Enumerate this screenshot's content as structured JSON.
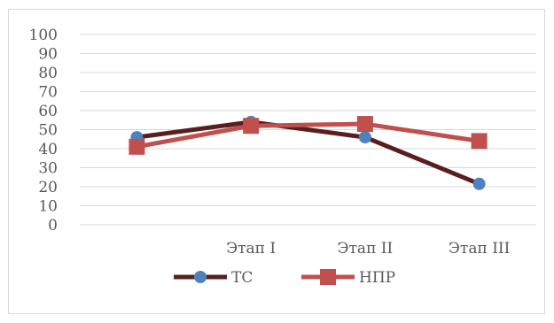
{
  "chart_data": {
    "type": "line",
    "categories": [
      "",
      "Этап I",
      "Этап II",
      "Этап III"
    ],
    "ylim": [
      0,
      100
    ],
    "yticks": [
      0,
      10,
      20,
      30,
      40,
      50,
      60,
      70,
      80,
      90,
      100
    ],
    "grid": true,
    "legend_position": "bottom",
    "series": [
      {
        "name": "ТС",
        "values": [
          46,
          54,
          46,
          21.5
        ],
        "color": "#5b1e1e",
        "marker": "circle",
        "marker_color": "#4f81bd"
      },
      {
        "name": "НПР",
        "values": [
          41,
          52,
          53,
          44
        ],
        "color": "#c0504d",
        "marker": "square",
        "marker_color": "#c0504d"
      }
    ],
    "title": "",
    "xlabel": "",
    "ylabel": ""
  }
}
